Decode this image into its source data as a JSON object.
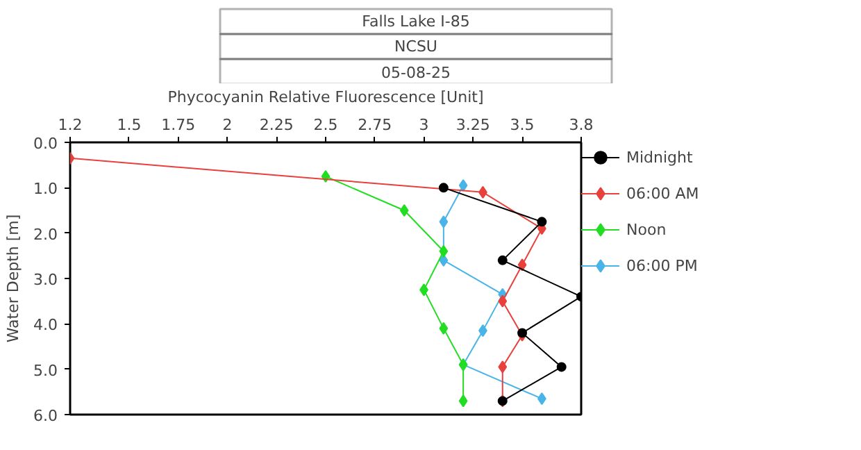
{
  "chart_data": {
    "type": "line",
    "title": "Falls Lake I-85",
    "subtitle": "NCSU",
    "annotations": [
      "05-08-25"
    ],
    "xlabel": "Phycocyanin Relative Fluorescence [Unit]",
    "ylabel": "Water Depth [m]",
    "xlim": [
      1.2,
      3.8
    ],
    "xticks": [
      1.2,
      1.5,
      1.75,
      2,
      2.25,
      2.5,
      2.75,
      3,
      3.25,
      3.5,
      3.8
    ],
    "ylim": [
      6.0,
      0.0
    ],
    "yticks": [
      {
        "value": 0,
        "label": "0.0"
      },
      {
        "value": 1,
        "label": "1.0"
      },
      {
        "value": 2,
        "label": "2.0"
      },
      {
        "value": 3,
        "label": "3.0"
      },
      {
        "value": 4,
        "label": "4.0"
      },
      {
        "value": 5,
        "label": "5.0"
      },
      {
        "value": 6,
        "label": "6.0"
      }
    ],
    "grid": false,
    "legend": "top right",
    "series": [
      {
        "name": "Midnight",
        "color": "#000000",
        "marker": "circle",
        "x": [
          3.1,
          3.6,
          3.4,
          3.8,
          3.5,
          3.7,
          3.4
        ],
        "values": [
          1.0,
          1.75,
          2.6,
          3.4,
          4.2,
          4.95,
          5.7
        ]
      },
      {
        "name": "06:00 AM",
        "color": "#e8413c",
        "marker": "diamond",
        "x": [
          1.2,
          3.3,
          3.6,
          3.5,
          3.4,
          3.5,
          3.4,
          3.4
        ],
        "values": [
          0.35,
          1.1,
          1.9,
          2.7,
          3.5,
          4.25,
          4.95,
          5.7
        ]
      },
      {
        "name": "Noon",
        "color": "#22dd22",
        "marker": "diamond",
        "x": [
          2.5,
          2.9,
          3.1,
          3.0,
          3.1,
          3.2,
          3.2
        ],
        "values": [
          0.75,
          1.5,
          2.4,
          3.25,
          4.1,
          4.9,
          5.7
        ]
      },
      {
        "name": "06:00 PM",
        "color": "#48b4e8",
        "marker": "diamond",
        "x": [
          3.2,
          3.1,
          3.1,
          3.4,
          3.3,
          3.2,
          3.6
        ],
        "values": [
          0.95,
          1.75,
          2.6,
          3.35,
          4.15,
          4.9,
          5.65
        ]
      }
    ]
  }
}
